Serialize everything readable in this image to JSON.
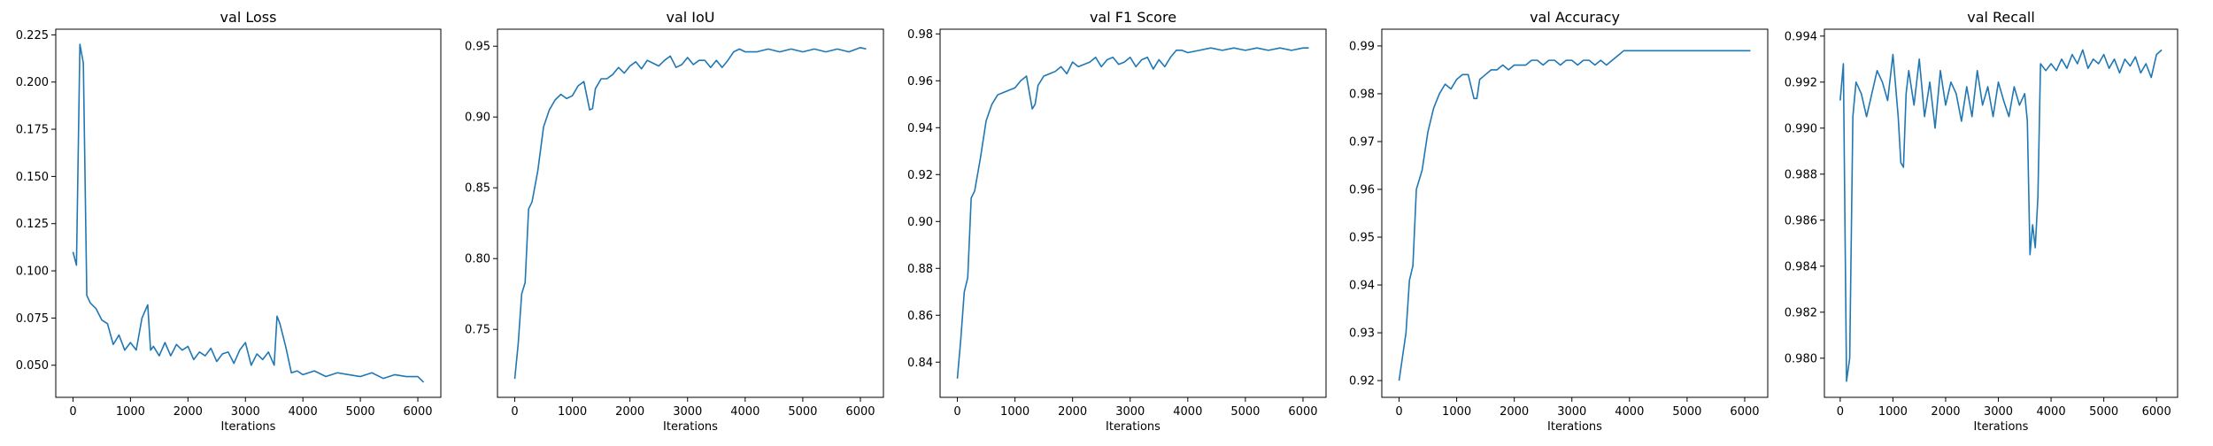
{
  "figure": {
    "line_color": "#1f77b4",
    "background": "#ffffff"
  },
  "chart_data": [
    {
      "type": "line",
      "title": "val Loss",
      "xlabel": "Iterations",
      "ylabel": "",
      "xlim": [
        -300,
        6400
      ],
      "ylim": [
        0.033,
        0.228
      ],
      "xticks": [
        0,
        1000,
        2000,
        3000,
        4000,
        5000,
        6000
      ],
      "xtick_labels": [
        "0",
        "1000",
        "2000",
        "3000",
        "4000",
        "5000",
        "6000"
      ],
      "yticks": [
        0.05,
        0.075,
        0.1,
        0.125,
        0.15,
        0.175,
        0.2,
        0.225
      ],
      "ytick_labels": [
        "0.050",
        "0.075",
        "0.100",
        "0.125",
        "0.150",
        "0.175",
        "0.200",
        "0.225"
      ],
      "series": [
        {
          "x": [
            0,
            60,
            120,
            180,
            240,
            300,
            400,
            500,
            600,
            700,
            800,
            900,
            1000,
            1100,
            1200,
            1300,
            1350,
            1400,
            1500,
            1600,
            1700,
            1800,
            1900,
            2000,
            2100,
            2200,
            2300,
            2400,
            2500,
            2600,
            2700,
            2800,
            2900,
            3000,
            3100,
            3200,
            3300,
            3400,
            3500,
            3550,
            3600,
            3700,
            3800,
            3900,
            4000,
            4200,
            4400,
            4600,
            4800,
            5000,
            5200,
            5400,
            5600,
            5800,
            6000,
            6100
          ],
          "y": [
            0.11,
            0.103,
            0.22,
            0.21,
            0.087,
            0.083,
            0.08,
            0.074,
            0.072,
            0.061,
            0.066,
            0.058,
            0.062,
            0.058,
            0.075,
            0.082,
            0.058,
            0.06,
            0.055,
            0.062,
            0.055,
            0.061,
            0.058,
            0.06,
            0.053,
            0.057,
            0.055,
            0.059,
            0.052,
            0.056,
            0.057,
            0.051,
            0.058,
            0.062,
            0.05,
            0.056,
            0.053,
            0.057,
            0.05,
            0.076,
            0.072,
            0.06,
            0.046,
            0.047,
            0.045,
            0.047,
            0.044,
            0.046,
            0.045,
            0.044,
            0.046,
            0.043,
            0.045,
            0.044,
            0.044,
            0.041
          ]
        }
      ]
    },
    {
      "type": "line",
      "title": "val IoU",
      "xlabel": "Iterations",
      "ylabel": "",
      "xlim": [
        -300,
        6400
      ],
      "ylim": [
        0.702,
        0.962
      ],
      "xticks": [
        0,
        1000,
        2000,
        3000,
        4000,
        5000,
        6000
      ],
      "xtick_labels": [
        "0",
        "1000",
        "2000",
        "3000",
        "4000",
        "5000",
        "6000"
      ],
      "yticks": [
        0.75,
        0.8,
        0.85,
        0.9,
        0.95
      ],
      "ytick_labels": [
        "0.75",
        "0.80",
        "0.85",
        "0.90",
        "0.95"
      ],
      "series": [
        {
          "x": [
            0,
            60,
            120,
            180,
            240,
            300,
            400,
            500,
            600,
            700,
            800,
            900,
            1000,
            1100,
            1200,
            1300,
            1350,
            1400,
            1500,
            1600,
            1700,
            1800,
            1900,
            2000,
            2100,
            2200,
            2300,
            2400,
            2500,
            2600,
            2700,
            2800,
            2900,
            3000,
            3100,
            3200,
            3300,
            3400,
            3500,
            3600,
            3700,
            3800,
            3900,
            4000,
            4200,
            4400,
            4600,
            4800,
            5000,
            5200,
            5400,
            5600,
            5800,
            6000,
            6100
          ],
          "y": [
            0.715,
            0.74,
            0.775,
            0.783,
            0.835,
            0.84,
            0.862,
            0.893,
            0.905,
            0.912,
            0.916,
            0.913,
            0.915,
            0.922,
            0.925,
            0.905,
            0.906,
            0.92,
            0.927,
            0.927,
            0.93,
            0.935,
            0.931,
            0.936,
            0.939,
            0.934,
            0.94,
            0.938,
            0.936,
            0.94,
            0.943,
            0.935,
            0.937,
            0.942,
            0.937,
            0.94,
            0.94,
            0.935,
            0.94,
            0.935,
            0.94,
            0.946,
            0.948,
            0.946,
            0.946,
            0.948,
            0.946,
            0.948,
            0.946,
            0.948,
            0.946,
            0.948,
            0.946,
            0.949,
            0.948
          ]
        }
      ]
    },
    {
      "type": "line",
      "title": "val F1 Score",
      "xlabel": "Iterations",
      "ylabel": "",
      "xlim": [
        -300,
        6400
      ],
      "ylim": [
        0.825,
        0.982
      ],
      "xticks": [
        0,
        1000,
        2000,
        3000,
        4000,
        5000,
        6000
      ],
      "xtick_labels": [
        "0",
        "1000",
        "2000",
        "3000",
        "4000",
        "5000",
        "6000"
      ],
      "yticks": [
        0.84,
        0.86,
        0.88,
        0.9,
        0.92,
        0.94,
        0.96,
        0.98
      ],
      "ytick_labels": [
        "0.84",
        "0.86",
        "0.88",
        "0.90",
        "0.92",
        "0.94",
        "0.96",
        "0.98"
      ],
      "series": [
        {
          "x": [
            0,
            60,
            120,
            180,
            240,
            300,
            400,
            500,
            600,
            700,
            800,
            900,
            1000,
            1100,
            1200,
            1300,
            1350,
            1400,
            1500,
            1600,
            1700,
            1800,
            1900,
            2000,
            2100,
            2200,
            2300,
            2400,
            2500,
            2600,
            2700,
            2800,
            2900,
            3000,
            3100,
            3200,
            3300,
            3400,
            3500,
            3600,
            3700,
            3800,
            3900,
            4000,
            4200,
            4400,
            4600,
            4800,
            5000,
            5200,
            5400,
            5600,
            5800,
            6000,
            6100
          ],
          "y": [
            0.833,
            0.85,
            0.87,
            0.876,
            0.91,
            0.913,
            0.927,
            0.943,
            0.95,
            0.954,
            0.955,
            0.956,
            0.957,
            0.96,
            0.962,
            0.948,
            0.95,
            0.958,
            0.962,
            0.963,
            0.964,
            0.966,
            0.963,
            0.968,
            0.966,
            0.967,
            0.968,
            0.97,
            0.966,
            0.969,
            0.97,
            0.967,
            0.968,
            0.97,
            0.966,
            0.969,
            0.97,
            0.965,
            0.969,
            0.966,
            0.97,
            0.973,
            0.973,
            0.972,
            0.973,
            0.974,
            0.973,
            0.974,
            0.973,
            0.974,
            0.973,
            0.974,
            0.973,
            0.974,
            0.974
          ]
        }
      ]
    },
    {
      "type": "line",
      "title": "val Accuracy",
      "xlabel": "Iterations",
      "ylabel": "",
      "xlim": [
        -300,
        6400
      ],
      "ylim": [
        0.9165,
        0.9935
      ],
      "xticks": [
        0,
        1000,
        2000,
        3000,
        4000,
        5000,
        6000
      ],
      "xtick_labels": [
        "0",
        "1000",
        "2000",
        "3000",
        "4000",
        "5000",
        "6000"
      ],
      "yticks": [
        0.92,
        0.93,
        0.94,
        0.95,
        0.96,
        0.97,
        0.98,
        0.99
      ],
      "ytick_labels": [
        "0.92",
        "0.93",
        "0.94",
        "0.95",
        "0.96",
        "0.97",
        "0.98",
        "0.99"
      ],
      "series": [
        {
          "x": [
            0,
            60,
            120,
            180,
            240,
            300,
            400,
            500,
            600,
            700,
            800,
            900,
            1000,
            1100,
            1200,
            1300,
            1350,
            1400,
            1500,
            1600,
            1700,
            1800,
            1900,
            2000,
            2100,
            2200,
            2300,
            2400,
            2500,
            2600,
            2700,
            2800,
            2900,
            3000,
            3100,
            3200,
            3300,
            3400,
            3500,
            3600,
            3700,
            3800,
            3900,
            4000,
            4200,
            4400,
            4600,
            4800,
            5000,
            5200,
            5400,
            5600,
            5800,
            6000,
            6100
          ],
          "y": [
            0.92,
            0.925,
            0.93,
            0.941,
            0.944,
            0.96,
            0.964,
            0.972,
            0.977,
            0.98,
            0.982,
            0.981,
            0.983,
            0.984,
            0.984,
            0.979,
            0.979,
            0.983,
            0.984,
            0.985,
            0.985,
            0.986,
            0.985,
            0.986,
            0.986,
            0.986,
            0.987,
            0.987,
            0.986,
            0.987,
            0.987,
            0.986,
            0.987,
            0.987,
            0.986,
            0.987,
            0.987,
            0.986,
            0.987,
            0.986,
            0.987,
            0.988,
            0.989,
            0.989,
            0.989,
            0.989,
            0.989,
            0.989,
            0.989,
            0.989,
            0.989,
            0.989,
            0.989,
            0.989,
            0.989
          ]
        }
      ]
    },
    {
      "type": "line",
      "title": "val Recall",
      "xlabel": "Iterations",
      "ylabel": "",
      "xlim": [
        -300,
        6400
      ],
      "ylim": [
        0.9783,
        0.9943
      ],
      "xticks": [
        0,
        1000,
        2000,
        3000,
        4000,
        5000,
        6000
      ],
      "xtick_labels": [
        "0",
        "1000",
        "2000",
        "3000",
        "4000",
        "5000",
        "6000"
      ],
      "yticks": [
        0.98,
        0.982,
        0.984,
        0.986,
        0.988,
        0.99,
        0.992,
        0.994
      ],
      "ytick_labels": [
        "0.980",
        "0.982",
        "0.984",
        "0.986",
        "0.988",
        "0.990",
        "0.992",
        "0.994"
      ],
      "series": [
        {
          "x": [
            0,
            60,
            120,
            180,
            240,
            300,
            400,
            500,
            600,
            700,
            800,
            900,
            1000,
            1100,
            1150,
            1200,
            1250,
            1300,
            1400,
            1500,
            1600,
            1700,
            1800,
            1900,
            2000,
            2100,
            2200,
            2300,
            2400,
            2500,
            2600,
            2700,
            2800,
            2900,
            3000,
            3100,
            3200,
            3300,
            3400,
            3500,
            3550,
            3600,
            3650,
            3700,
            3750,
            3800,
            3900,
            4000,
            4100,
            4200,
            4300,
            4400,
            4500,
            4600,
            4700,
            4800,
            4900,
            5000,
            5100,
            5200,
            5300,
            5400,
            5500,
            5600,
            5700,
            5800,
            5900,
            6000,
            6100
          ],
          "y": [
            0.9912,
            0.9928,
            0.979,
            0.98,
            0.9905,
            0.992,
            0.9915,
            0.9905,
            0.9915,
            0.9925,
            0.992,
            0.9912,
            0.9932,
            0.9905,
            0.9885,
            0.9883,
            0.9915,
            0.9925,
            0.991,
            0.993,
            0.9905,
            0.992,
            0.99,
            0.9925,
            0.991,
            0.992,
            0.9915,
            0.9903,
            0.9918,
            0.9905,
            0.9925,
            0.991,
            0.9918,
            0.9905,
            0.992,
            0.9912,
            0.9905,
            0.9918,
            0.991,
            0.9915,
            0.9903,
            0.9845,
            0.9858,
            0.9848,
            0.987,
            0.9928,
            0.9925,
            0.9928,
            0.9925,
            0.993,
            0.9926,
            0.9932,
            0.9928,
            0.9934,
            0.9926,
            0.993,
            0.9928,
            0.9932,
            0.9926,
            0.993,
            0.9924,
            0.993,
            0.9927,
            0.9931,
            0.9924,
            0.9928,
            0.9922,
            0.9932,
            0.9934
          ]
        }
      ]
    }
  ]
}
